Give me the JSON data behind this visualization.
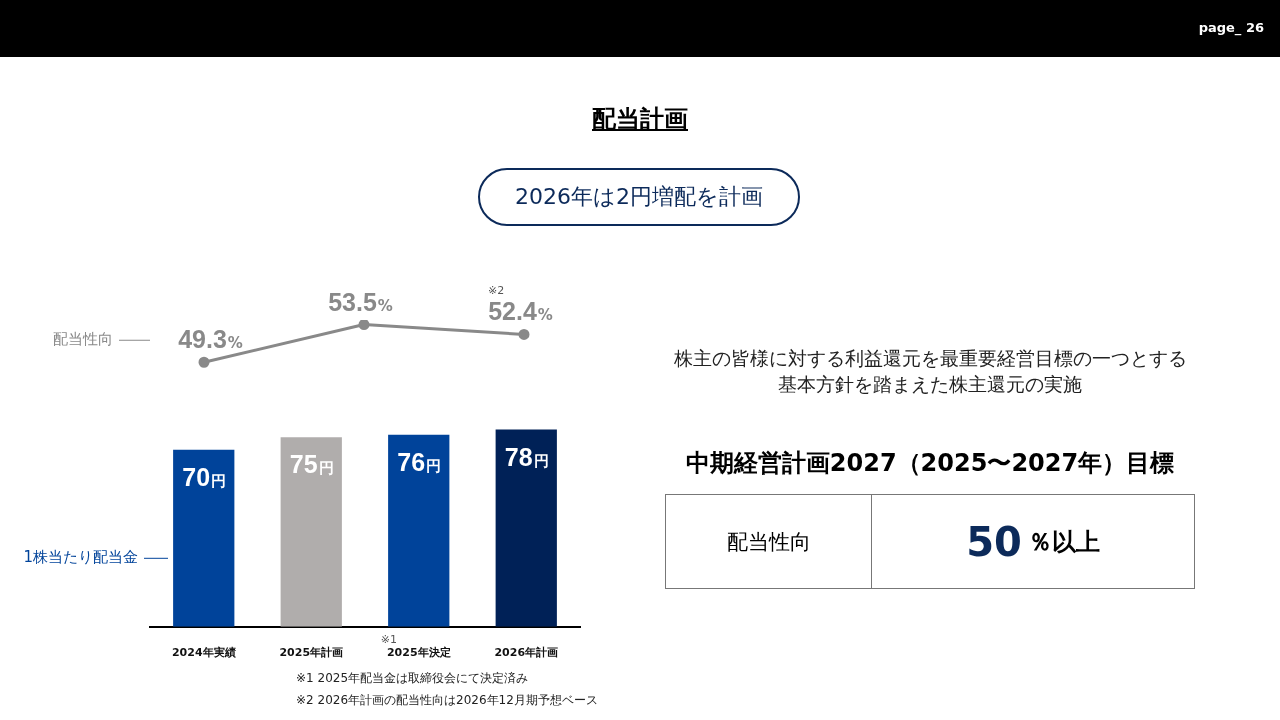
{
  "chart_data": [
    {
      "type": "line",
      "title": "配当計画",
      "subtitle": "2026年は2円増配を計画",
      "categories": [
        null,
        null,
        null
      ],
      "series": [
        {
          "name": "配当性向",
          "color": "#898989",
          "values": [
            49.3,
            53.5,
            52.4
          ],
          "value_labels": [
            "49.3%",
            "53.5%",
            "52.4%"
          ]
        }
      ],
      "marker": "circle",
      "grid": false,
      "legend": "left",
      "tick_labels": false,
      "annotations": [
        "※2"
      ]
    },
    {
      "type": "bar",
      "categories": [
        "2024年実績",
        "2025年計画",
        "2025年決定",
        "2026年計画"
      ],
      "series": [
        {
          "name": "1株当たり配当金",
          "colors": [
            "#00439a",
            "#b0adac",
            "#00439a",
            "#002157"
          ],
          "values": [
            70,
            75,
            76,
            78
          ],
          "value_labels": [
            "70円",
            "75円",
            "76円",
            "78円"
          ]
        }
      ],
      "grid": false,
      "legend": "left",
      "tick_labels": "x",
      "annotations": [
        "※1",
        "※1 2025年配当金は取締役会にて決定済み",
        "※2 2026年計画の配当性向は2026年12月期予想ベース",
        "株主の皆様に対する利益還元を最重要経営目標の一つとする基本方針を踏まえた株主還元の実施",
        "中期経営計画2027（2025〜2027年）目標",
        "配当性向",
        "50％以上",
        "page_ 26"
      ]
    }
  ]
}
